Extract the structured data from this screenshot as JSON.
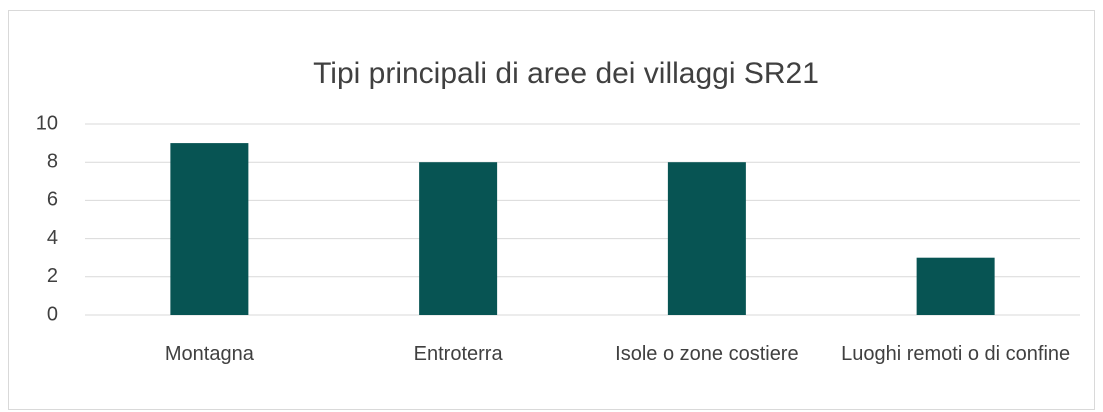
{
  "chart_data": {
    "type": "bar",
    "title": "Tipi principali di aree dei villaggi SR21",
    "categories": [
      "Montagna",
      "Entroterra",
      "Isole o zone costiere",
      "Luoghi remoti o di confine"
    ],
    "values": [
      9,
      8,
      8,
      3
    ],
    "color": "#075453",
    "ylim": [
      0,
      10
    ],
    "yticks": [
      0,
      2,
      4,
      6,
      8,
      10
    ],
    "grid": true
  }
}
